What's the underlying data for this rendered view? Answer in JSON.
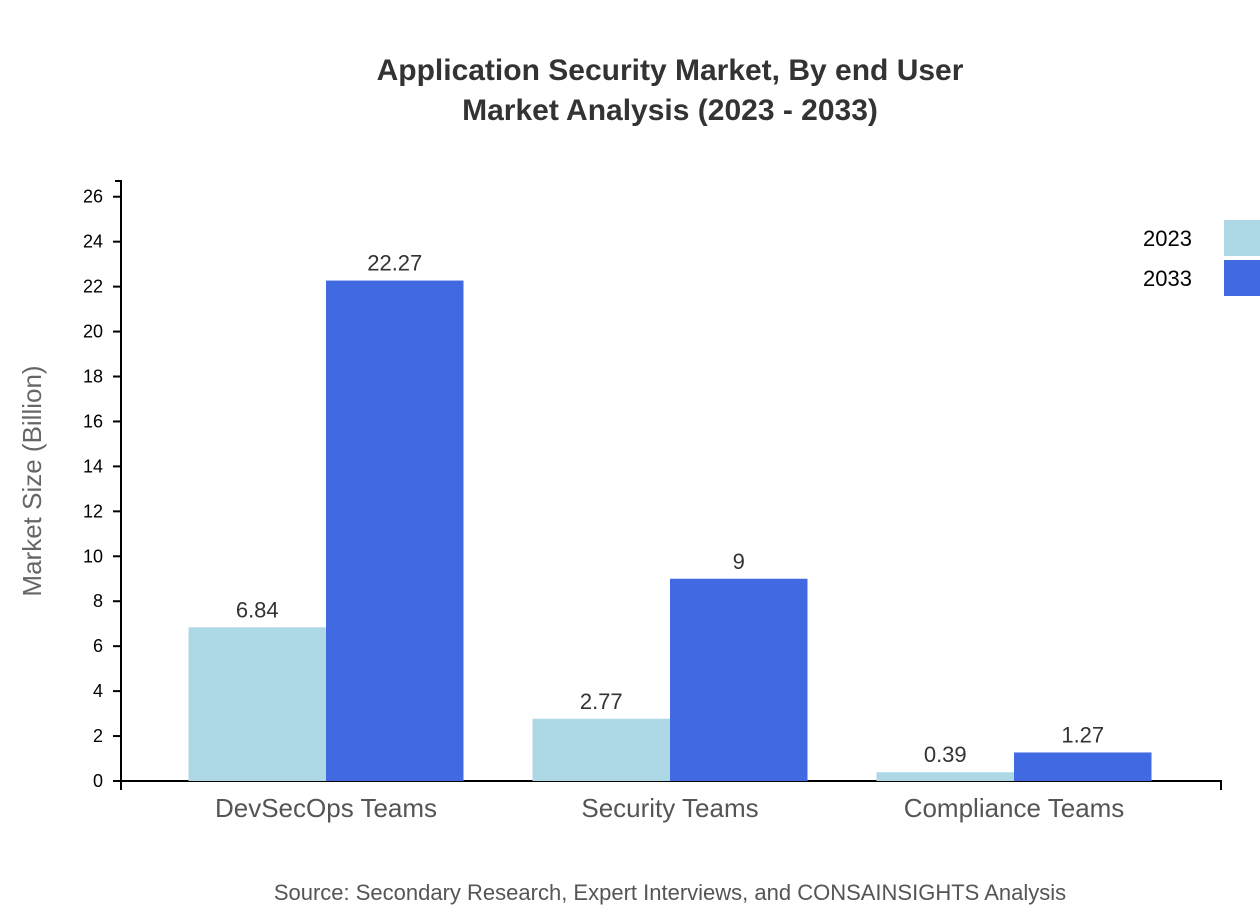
{
  "chart_data": {
    "type": "bar",
    "title_lines": [
      "Application Security Market, By end User",
      "Market Analysis (2023 - 2033)"
    ],
    "xlabel": "",
    "ylabel": "Market Size (Billion)",
    "categories": [
      "DevSecOps Teams",
      "Security Teams",
      "Compliance Teams"
    ],
    "series": [
      {
        "name": "2023",
        "values": [
          6.84,
          2.77,
          0.39
        ],
        "color": "#add8e6"
      },
      {
        "name": "2033",
        "values": [
          22.27,
          9,
          1.27
        ],
        "color": "#4169e1"
      }
    ],
    "ylim": [
      0,
      26.7
    ],
    "yticks": [
      0,
      2,
      4,
      6,
      8,
      10,
      12,
      14,
      16,
      18,
      20,
      22,
      24,
      26
    ],
    "grid": false,
    "legend_position": "top-right",
    "source": "Source: Secondary Research, Expert Interviews, and CONSAINSIGHTS Analysis"
  }
}
